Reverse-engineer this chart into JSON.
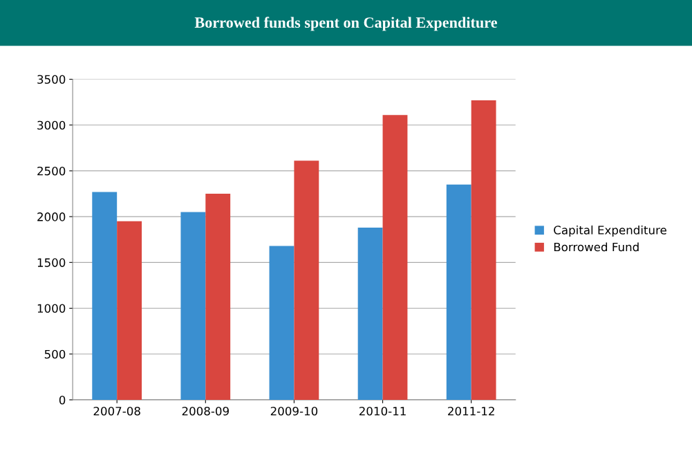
{
  "chart_data": {
    "type": "bar",
    "title": "Borrowed funds spent on Capital Expenditure",
    "categories": [
      "2007-08",
      "2008-09",
      "2009-10",
      "2010-11",
      "2011-12"
    ],
    "series": [
      {
        "name": "Capital Expenditure",
        "color": "#3a8fd0",
        "values": [
          2270,
          2050,
          1680,
          1880,
          2350
        ]
      },
      {
        "name": "Borrowed Fund",
        "color": "#d9463f",
        "values": [
          1950,
          2250,
          2610,
          3110,
          3270
        ]
      }
    ],
    "ylim": [
      0,
      3500
    ],
    "yticks": [
      0,
      500,
      1000,
      1500,
      2000,
      2500,
      3000,
      3500
    ],
    "grid": "y",
    "legend": "right"
  }
}
